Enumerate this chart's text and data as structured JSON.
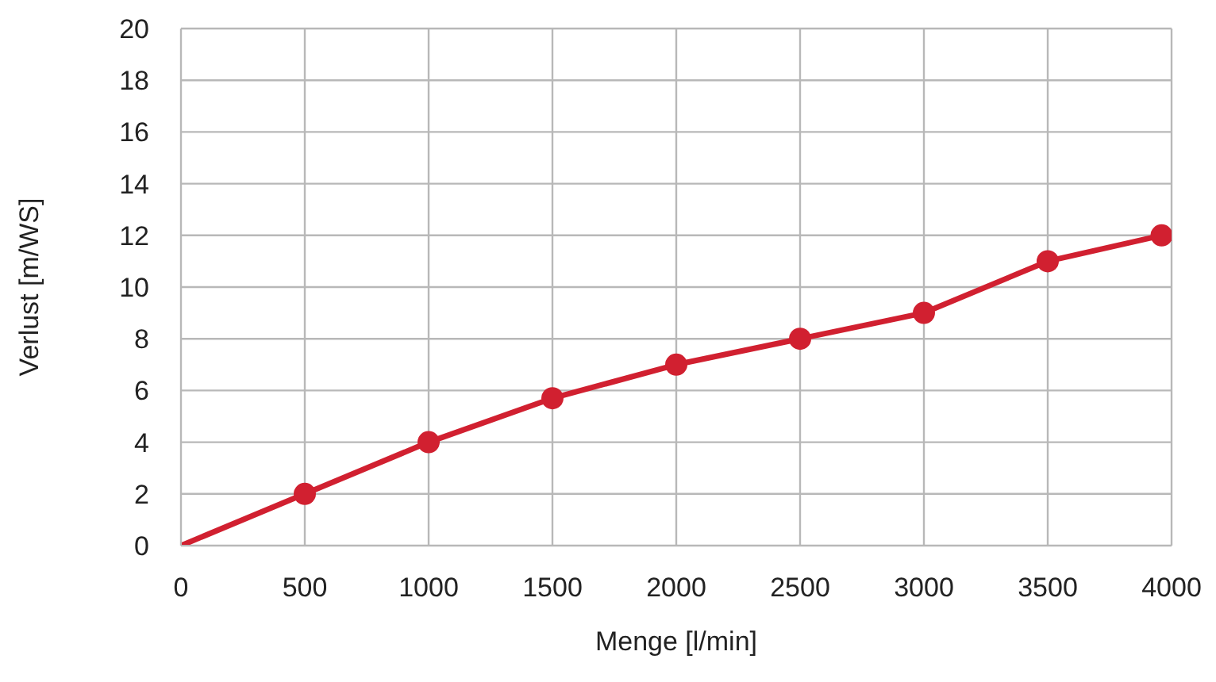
{
  "chart_data": {
    "type": "line",
    "xlabel": "Menge [l/min]",
    "ylabel": "Verlust [m/WS]",
    "xlim": [
      0,
      4000
    ],
    "xticks": [
      0,
      500,
      1000,
      1500,
      2000,
      2500,
      3000,
      3500,
      4000
    ],
    "ylim": [
      0,
      20
    ],
    "yticks": [
      0,
      2,
      4,
      6,
      8,
      10,
      12,
      14,
      16,
      18,
      20
    ],
    "grid": true,
    "line_style": "solid",
    "series": [
      {
        "marker": "none",
        "color": "#d12030",
        "x": [
          0,
          500,
          1000,
          1500,
          2000,
          2500,
          3000,
          3500,
          3960
        ],
        "values": [
          0,
          2,
          4,
          5.7,
          7,
          8,
          9,
          11,
          12
        ]
      },
      {
        "type": "scatter",
        "marker": "circle",
        "color": "#d12030",
        "x": [
          500,
          1000,
          1500,
          2000,
          2500,
          3000,
          3500,
          3960
        ],
        "values": [
          2,
          4,
          5.7,
          7,
          8,
          9,
          11,
          12
        ]
      }
    ]
  }
}
